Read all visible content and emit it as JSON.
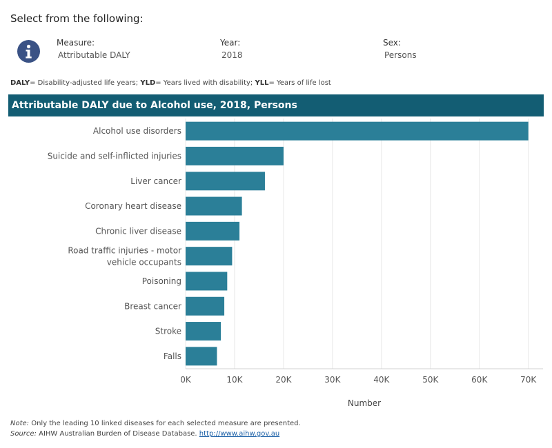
{
  "header": {
    "select_title": "Select from the following:"
  },
  "filters": [
    {
      "label": "Measure:",
      "value": "Attributable DALY"
    },
    {
      "label": "Year:",
      "value": "2018"
    },
    {
      "label": "Sex:",
      "value": "Persons"
    }
  ],
  "glossary": {
    "daly_key": "DALY",
    "daly_text": "= Disability-adjusted life years; ",
    "yld_key": "YLD",
    "yld_text": "= Years lived with disability; ",
    "yll_key": "YLL",
    "yll_text": "= Years of life lost"
  },
  "footer": {
    "note_label": "Note:",
    "note_text": " Only the leading 10 linked diseases for each selected measure are presented.",
    "source_label": "Source:",
    "source_text": " AIHW Australian Burden of Disease Database. ",
    "source_link": "http://www.aihw.gov.au"
  },
  "colors": {
    "bar": "#2b7f98",
    "header": "#135d73",
    "gridline": "#e8e8e8",
    "info": "#3a5285"
  },
  "icons": {
    "info": "info-icon"
  },
  "chart_data": {
    "type": "bar",
    "orientation": "horizontal",
    "title": "Attributable DALY due to Alcohol use, 2018, Persons",
    "xlabel": "Number",
    "ylabel": "",
    "categories": [
      "Alcohol use disorders",
      "Suicide and self-inflicted injuries",
      "Liver cancer",
      "Coronary heart disease",
      "Chronic liver disease",
      "Road traffic injuries - motor vehicle occupants",
      "Poisoning",
      "Breast cancer",
      "Stroke",
      "Falls"
    ],
    "values": [
      70000,
      20000,
      16200,
      11500,
      11000,
      9500,
      8500,
      7900,
      7200,
      6400
    ],
    "xlim": [
      0,
      73000
    ],
    "ticks": [
      0,
      10000,
      20000,
      30000,
      40000,
      50000,
      60000,
      70000
    ],
    "tick_labels": [
      "0K",
      "10K",
      "20K",
      "30K",
      "40K",
      "50K",
      "60K",
      "70K"
    ],
    "grid": true
  }
}
